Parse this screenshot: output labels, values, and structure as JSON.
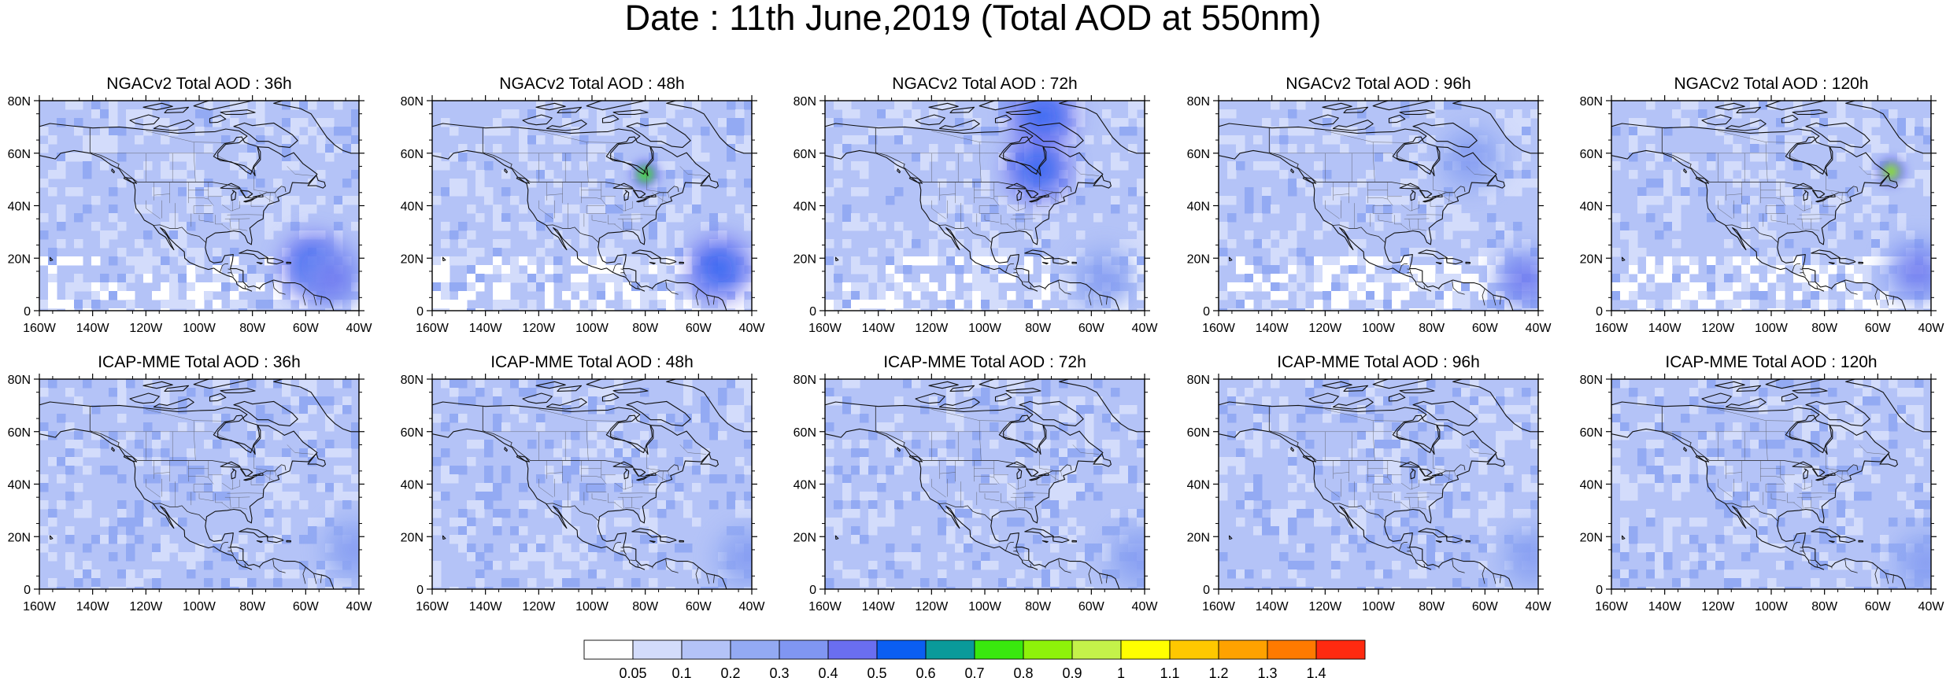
{
  "title": "Date : 11th June,2019 (Total AOD at 550nm)",
  "panels": [
    {
      "title": "NGACv2 Total AOD : 36h",
      "model": "NGACv2",
      "lead": "36h"
    },
    {
      "title": "NGACv2 Total AOD : 48h",
      "model": "NGACv2",
      "lead": "48h"
    },
    {
      "title": "NGACv2 Total AOD : 72h",
      "model": "NGACv2",
      "lead": "72h"
    },
    {
      "title": "NGACv2 Total AOD : 96h",
      "model": "NGACv2",
      "lead": "96h"
    },
    {
      "title": "NGACv2 Total AOD : 120h",
      "model": "NGACv2",
      "lead": "120h"
    },
    {
      "title": "ICAP-MME Total AOD : 36h",
      "model": "ICAP-MME",
      "lead": "36h"
    },
    {
      "title": "ICAP-MME Total AOD : 48h",
      "model": "ICAP-MME",
      "lead": "48h"
    },
    {
      "title": "ICAP-MME Total AOD : 72h",
      "model": "ICAP-MME",
      "lead": "72h"
    },
    {
      "title": "ICAP-MME Total AOD : 96h",
      "model": "ICAP-MME",
      "lead": "96h"
    },
    {
      "title": "ICAP-MME Total AOD : 120h",
      "model": "ICAP-MME",
      "lead": "120h"
    }
  ],
  "lon_ticks": [
    "160W",
    "140W",
    "120W",
    "100W",
    "80W",
    "60W",
    "40W"
  ],
  "lat_ticks": [
    "0",
    "20N",
    "40N",
    "60N",
    "80N"
  ],
  "extent": {
    "lon_min": -160,
    "lon_max": -40,
    "lat_min": 0,
    "lat_max": 80
  },
  "colorbar": {
    "labels": [
      "0.05",
      "0.1",
      "0.2",
      "0.3",
      "0.4",
      "0.5",
      "0.6",
      "0.7",
      "0.8",
      "0.9",
      "1",
      "1.1",
      "1.2",
      "1.3",
      "1.4"
    ],
    "colors": [
      "#ffffff",
      "#d3dcfb",
      "#b4c3f7",
      "#93aaf3",
      "#8096f2",
      "#6a6ef0",
      "#0b5ef2",
      "#0a9a9a",
      "#39e80e",
      "#8ef20a",
      "#c4f24a",
      "#ffff00",
      "#ffc800",
      "#ffa200",
      "#ff7a00",
      "#ff2a10"
    ]
  },
  "hotspots": [
    [
      {
        "lon": -57,
        "lat": 17,
        "level": 6
      },
      {
        "lon": -50,
        "lat": 12,
        "level": 5
      }
    ],
    [
      {
        "lon": -52,
        "lat": 16,
        "level": 6
      },
      {
        "lon": -80,
        "lat": 52,
        "level": 8
      }
    ],
    [
      {
        "lon": -78,
        "lat": 74,
        "level": 6
      },
      {
        "lon": -80,
        "lat": 54,
        "level": 6
      },
      {
        "lon": -55,
        "lat": 12,
        "level": 4
      }
    ],
    [
      {
        "lon": -45,
        "lat": 12,
        "level": 5
      },
      {
        "lon": -65,
        "lat": 58,
        "level": 4
      }
    ],
    [
      {
        "lon": -55,
        "lat": 53,
        "level": 9
      },
      {
        "lon": -45,
        "lat": 15,
        "level": 5
      }
    ],
    [
      {
        "lon": -42,
        "lat": 15,
        "level": 4
      }
    ],
    [
      {
        "lon": -42,
        "lat": 12,
        "level": 4
      }
    ],
    [
      {
        "lon": -42,
        "lat": 12,
        "level": 4
      }
    ],
    [
      {
        "lon": -42,
        "lat": 12,
        "level": 4
      }
    ],
    [
      {
        "lon": -42,
        "lat": 10,
        "level": 4
      }
    ]
  ]
}
